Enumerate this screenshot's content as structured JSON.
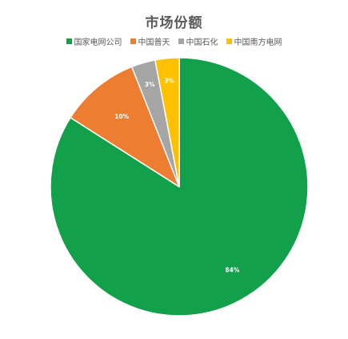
{
  "chart_data": {
    "type": "pie",
    "title": "市场份额",
    "categories": [
      "国家电网公司",
      "中国普天",
      "中国石化",
      "中国南方电网"
    ],
    "values": [
      84,
      10,
      3,
      3
    ],
    "data_labels": [
      "84%",
      "10%",
      "3%",
      "3%"
    ],
    "colors": [
      "#12A04A",
      "#ED7D31",
      "#A5A5A5",
      "#FFC000"
    ],
    "legend_position": "top",
    "start_angle": "12 o'clock",
    "direction": "clockwise"
  }
}
